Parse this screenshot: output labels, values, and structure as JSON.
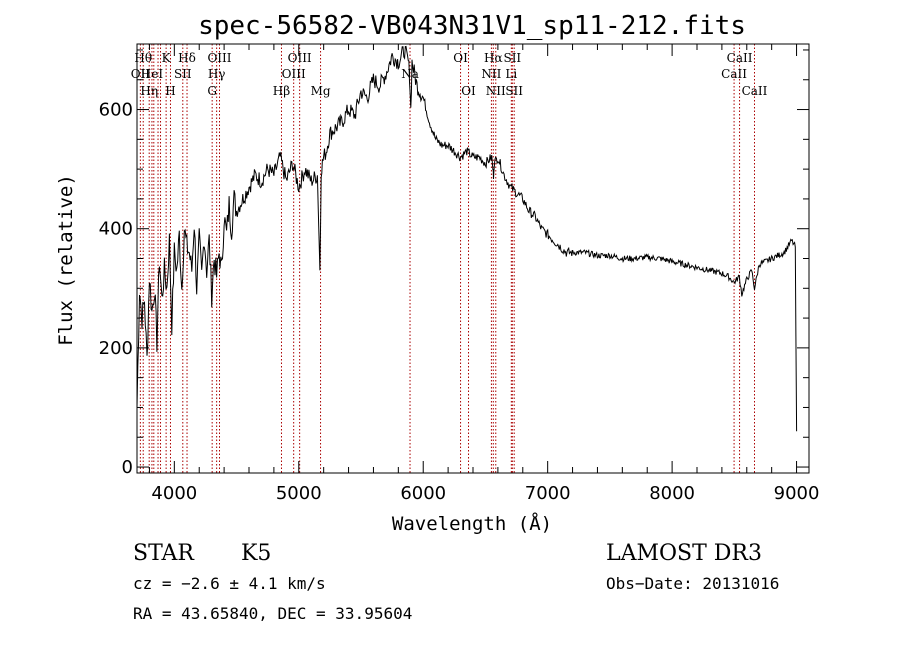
{
  "chart_data": {
    "type": "line",
    "title": "spec-56582-VB043N31V1_sp11-212.fits",
    "xlabel": "Wavelength (Å)",
    "ylabel": "Flux (relative)",
    "xlim": [
      3700,
      9100
    ],
    "ylim": [
      -10,
      710
    ],
    "xticks": [
      4000,
      5000,
      6000,
      7000,
      8000,
      9000
    ],
    "yticks": [
      0,
      200,
      400,
      600
    ],
    "series": [
      {
        "name": "flux",
        "x": [
          3700,
          3720,
          3740,
          3760,
          3780,
          3800,
          3820,
          3840,
          3860,
          3880,
          3900,
          3920,
          3940,
          3960,
          3980,
          4000,
          4020,
          4040,
          4060,
          4080,
          4100,
          4120,
          4140,
          4160,
          4180,
          4200,
          4220,
          4240,
          4260,
          4280,
          4300,
          4320,
          4340,
          4360,
          4380,
          4400,
          4420,
          4440,
          4460,
          4480,
          4500,
          4550,
          4600,
          4650,
          4700,
          4750,
          4800,
          4850,
          4900,
          4950,
          5000,
          5050,
          5100,
          5150,
          5170,
          5180,
          5190,
          5200,
          5220,
          5250,
          5300,
          5350,
          5400,
          5450,
          5500,
          5550,
          5600,
          5650,
          5700,
          5750,
          5800,
          5850,
          5880,
          5890,
          5900,
          5910,
          5950,
          6000,
          6050,
          6100,
          6150,
          6200,
          6250,
          6300,
          6350,
          6400,
          6450,
          6500,
          6550,
          6560,
          6565,
          6570,
          6600,
          6650,
          6700,
          6750,
          6800,
          6850,
          6900,
          6950,
          7000,
          7050,
          7100,
          7150,
          7200,
          7300,
          7400,
          7500,
          7600,
          7700,
          7800,
          7900,
          8000,
          8100,
          8200,
          8300,
          8400,
          8450,
          8500,
          8540,
          8560,
          8600,
          8640,
          8662,
          8700,
          8800,
          8900,
          8960,
          8990,
          9000
        ],
        "values": [
          100,
          300,
          250,
          280,
          180,
          320,
          260,
          300,
          210,
          350,
          280,
          330,
          300,
          380,
          240,
          360,
          330,
          390,
          300,
          400,
          370,
          360,
          330,
          410,
          300,
          380,
          320,
          390,
          330,
          380,
          290,
          350,
          320,
          360,
          330,
          420,
          390,
          440,
          400,
          450,
          430,
          450,
          470,
          490,
          480,
          500,
          490,
          520,
          480,
          510,
          470,
          500,
          480,
          490,
          330,
          500,
          510,
          520,
          530,
          560,
          570,
          580,
          600,
          590,
          630,
          620,
          650,
          640,
          660,
          690,
          680,
          700,
          680,
          660,
          600,
          680,
          640,
          620,
          580,
          550,
          540,
          540,
          530,
          520,
          530,
          520,
          520,
          510,
          520,
          500,
          490,
          510,
          520,
          490,
          470,
          460,
          450,
          430,
          420,
          400,
          390,
          380,
          370,
          360,
          360,
          360,
          355,
          355,
          350,
          350,
          352,
          350,
          345,
          340,
          335,
          330,
          325,
          320,
          310,
          320,
          290,
          315,
          330,
          300,
          340,
          350,
          360,
          380,
          370,
          60
        ]
      }
    ],
    "spectral_lines": [
      {
        "wl": 3727,
        "label": "OII",
        "tier": 2
      },
      {
        "wl": 3750,
        "label": "Hθ",
        "tier": 1
      },
      {
        "wl": 3798,
        "label": "Hη",
        "tier": 3
      },
      {
        "wl": 3820,
        "label": "HeI",
        "tier": 2
      },
      {
        "wl": 3835,
        "label": "",
        "tier": 0
      },
      {
        "wl": 3869,
        "label": "",
        "tier": 0
      },
      {
        "wl": 3889,
        "label": "",
        "tier": 0
      },
      {
        "wl": 3934,
        "label": "K",
        "tier": 1
      },
      {
        "wl": 3969,
        "label": "H",
        "tier": 3
      },
      {
        "wl": 4068,
        "label": "SII",
        "tier": 2
      },
      {
        "wl": 4102,
        "label": "Hδ",
        "tier": 1
      },
      {
        "wl": 4304,
        "label": "G",
        "tier": 3
      },
      {
        "wl": 4340,
        "label": "Hγ",
        "tier": 2
      },
      {
        "wl": 4363,
        "label": "OIII",
        "tier": 1
      },
      {
        "wl": 4861,
        "label": "Hβ",
        "tier": 3
      },
      {
        "wl": 4959,
        "label": "OIII",
        "tier": 2
      },
      {
        "wl": 5007,
        "label": "OIII",
        "tier": 1
      },
      {
        "wl": 5175,
        "label": "Mg",
        "tier": 3
      },
      {
        "wl": 5894,
        "label": "Na",
        "tier": 2
      },
      {
        "wl": 6300,
        "label": "OI",
        "tier": 1
      },
      {
        "wl": 6364,
        "label": "OI",
        "tier": 3
      },
      {
        "wl": 6548,
        "label": "NII",
        "tier": 2
      },
      {
        "wl": 6563,
        "label": "Hα",
        "tier": 1
      },
      {
        "wl": 6583,
        "label": "NII",
        "tier": 3
      },
      {
        "wl": 6708,
        "label": "Li",
        "tier": 2
      },
      {
        "wl": 6716,
        "label": "SII",
        "tier": 1
      },
      {
        "wl": 6731,
        "label": "SII",
        "tier": 3
      },
      {
        "wl": 8498,
        "label": "CaII",
        "tier": 2
      },
      {
        "wl": 8542,
        "label": "CaII",
        "tier": 1
      },
      {
        "wl": 8662,
        "label": "CaII",
        "tier": 3
      }
    ],
    "line_color": "#000000",
    "marker_color": "#aa0000"
  },
  "info": {
    "object_class": "STAR",
    "subclass": "K5",
    "survey": "LAMOST DR3",
    "redshift": "cz = −2.6 ± 4.1 km/s",
    "obs_date": "Obs−Date: 20131016",
    "coords": "RA =  43.65840, DEC =  33.95604"
  }
}
